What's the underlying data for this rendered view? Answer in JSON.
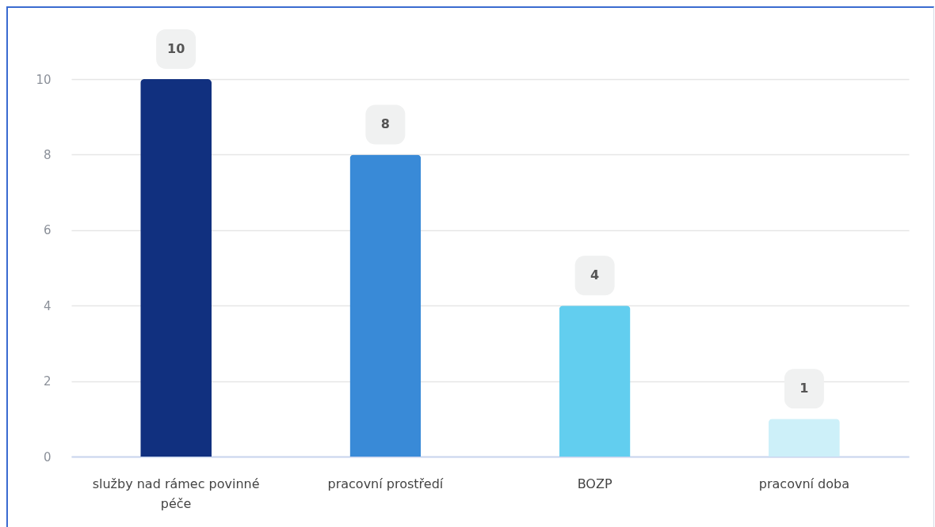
{
  "chart_data": {
    "type": "bar",
    "categories": [
      "služby nad rámec povinné péče",
      "pracovní prostředí",
      "BOZP",
      "pracovní doba"
    ],
    "values": [
      10,
      8,
      4,
      1
    ],
    "colors": [
      "#11307f",
      "#398ad7",
      "#62ceef",
      "#cdf0f9"
    ],
    "ylim": [
      0,
      10
    ],
    "yticks": [
      0,
      2,
      4,
      6,
      8,
      10
    ],
    "grid": "y",
    "data_labels": true
  }
}
